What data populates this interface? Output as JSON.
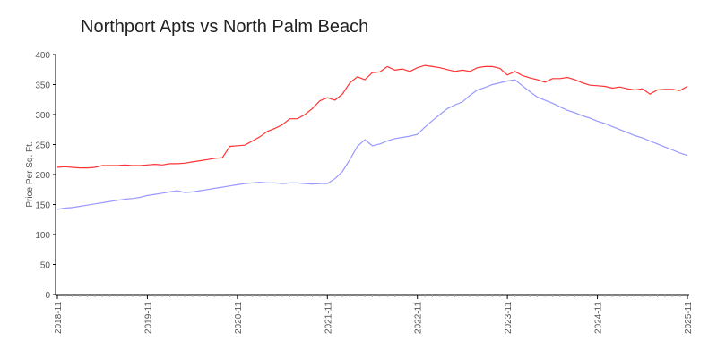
{
  "chart_data": {
    "type": "line",
    "title": "Northport Apts vs North Palm Beach",
    "xlabel": "",
    "ylabel": "Price Per Sq. Ft.",
    "ylim": [
      0,
      400
    ],
    "yticks": [
      "0",
      "50",
      "100",
      "150",
      "200",
      "250",
      "300",
      "350",
      "400"
    ],
    "xticks": [
      "2018-11",
      "2019-11",
      "2020-11",
      "2021-11",
      "2022-11",
      "2023-11",
      "2024-11",
      "2025-11"
    ],
    "grid": false,
    "x": [
      "2018-11",
      "2018-12",
      "2019-01",
      "2019-02",
      "2019-03",
      "2019-04",
      "2019-05",
      "2019-06",
      "2019-07",
      "2019-08",
      "2019-09",
      "2019-10",
      "2019-11",
      "2019-12",
      "2020-01",
      "2020-02",
      "2020-03",
      "2020-04",
      "2020-05",
      "2020-06",
      "2020-07",
      "2020-08",
      "2020-09",
      "2020-10",
      "2020-11",
      "2020-12",
      "2021-01",
      "2021-02",
      "2021-03",
      "2021-04",
      "2021-05",
      "2021-06",
      "2021-07",
      "2021-08",
      "2021-09",
      "2021-10",
      "2021-11",
      "2021-12",
      "2022-01",
      "2022-02",
      "2022-03",
      "2022-04",
      "2022-05",
      "2022-06",
      "2022-07",
      "2022-08",
      "2022-09",
      "2022-10",
      "2022-11",
      "2022-12",
      "2023-01",
      "2023-02",
      "2023-03",
      "2023-04",
      "2023-05",
      "2023-06",
      "2023-07",
      "2023-08",
      "2023-09",
      "2023-10",
      "2023-11",
      "2023-12",
      "2024-01",
      "2024-02",
      "2024-03",
      "2024-04",
      "2024-05",
      "2024-06",
      "2024-07",
      "2024-08",
      "2024-09",
      "2024-10",
      "2024-11",
      "2024-12",
      "2025-01",
      "2025-02",
      "2025-03",
      "2025-04",
      "2025-05",
      "2025-06",
      "2025-07",
      "2025-08",
      "2025-09",
      "2025-10",
      "2025-11"
    ],
    "series": [
      {
        "color": "#ff3333",
        "values": [
          212,
          213,
          212,
          211,
          211,
          212,
          215,
          215,
          215,
          216,
          215,
          215,
          216,
          217,
          216,
          218,
          218,
          219,
          221,
          223,
          225,
          227,
          228,
          247,
          248,
          249,
          256,
          263,
          272,
          277,
          283,
          293,
          293,
          300,
          310,
          323,
          328,
          324,
          334,
          353,
          363,
          358,
          370,
          371,
          380,
          374,
          376,
          372,
          378,
          382,
          380,
          378,
          375,
          372,
          374,
          372,
          378,
          380,
          380,
          377,
          366,
          372,
          365,
          361,
          358,
          354,
          360,
          360,
          362,
          358,
          353,
          349,
          348,
          347,
          344,
          346,
          343,
          341,
          343,
          334,
          341,
          342,
          342,
          340,
          347
        ]
      },
      {
        "color": "#9999ff",
        "values": [
          142,
          144,
          145,
          147,
          149,
          151,
          153,
          155,
          157,
          159,
          160,
          162,
          165,
          167,
          169,
          171,
          173,
          170,
          171,
          173,
          175,
          177,
          179,
          181,
          183,
          185,
          186,
          187,
          186,
          186,
          185,
          186,
          186,
          185,
          184,
          185,
          185,
          193,
          205,
          225,
          247,
          258,
          248,
          251,
          256,
          260,
          262,
          264,
          267,
          279,
          290,
          300,
          310,
          316,
          321,
          332,
          341,
          345,
          350,
          353,
          356,
          358,
          348,
          338,
          329,
          324,
          319,
          313,
          307,
          303,
          298,
          294,
          289,
          285,
          280,
          275,
          270,
          265,
          261,
          256,
          251,
          246,
          241,
          236,
          232
        ]
      }
    ]
  }
}
